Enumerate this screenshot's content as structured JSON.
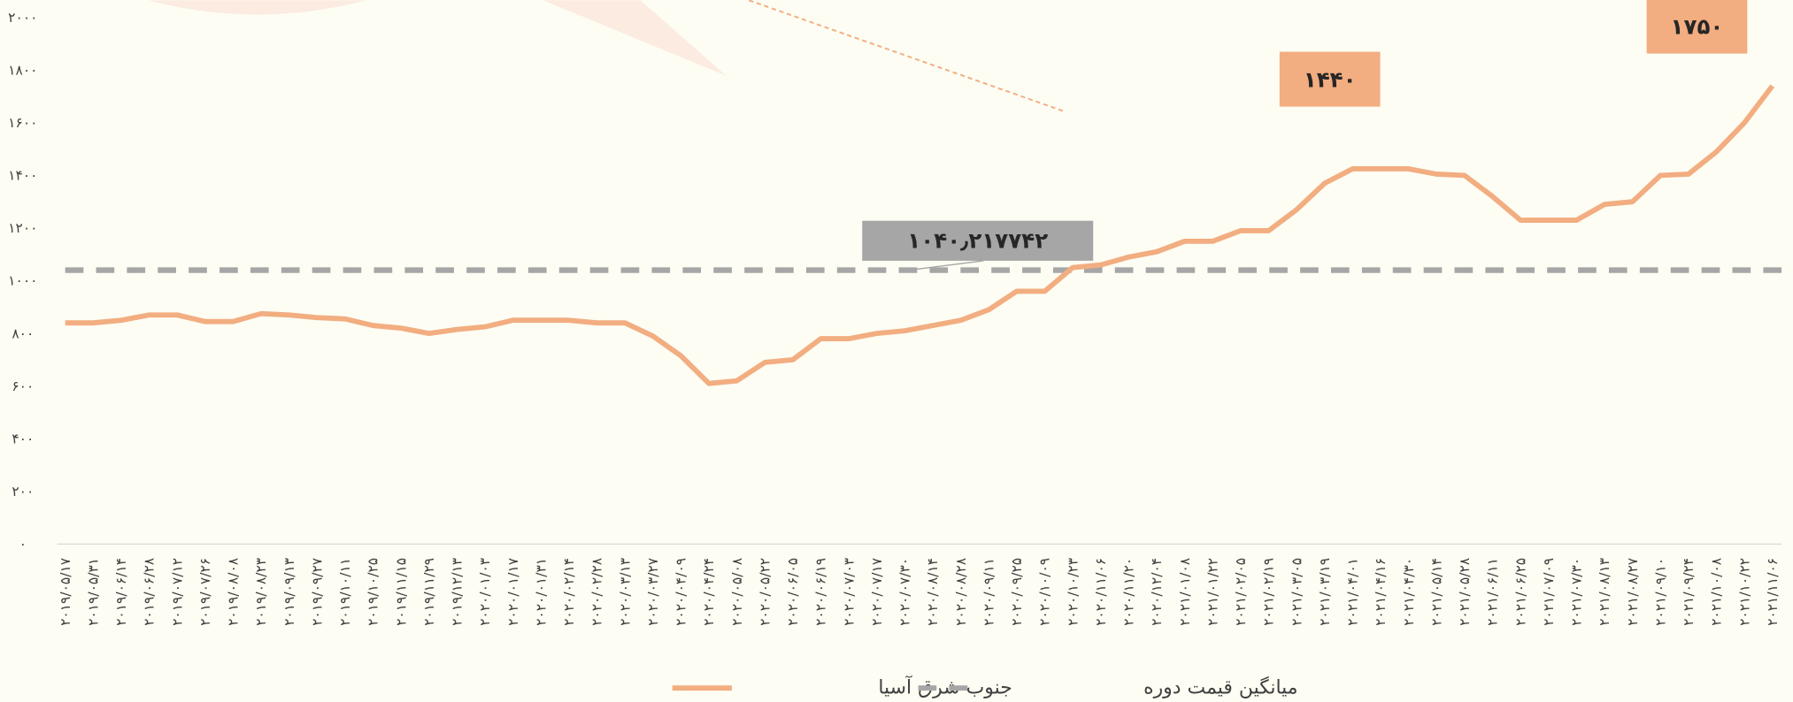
{
  "chart_data": {
    "type": "line",
    "categories": [
      "۲۰۱۹/۰۵/۱۷",
      "۲۰۱۹/۰۵/۳۱",
      "۲۰۱۹/۰۶/۱۴",
      "۲۰۱۹/۰۶/۲۸",
      "۲۰۱۹/۰۷/۱۲",
      "۲۰۱۹/۰۷/۲۶",
      "۲۰۱۹/۰۸/۰۸",
      "۲۰۱۹/۰۸/۲۳",
      "۲۰۱۹/۰۹/۱۳",
      "۲۰۱۹/۰۹/۲۷",
      "۲۰۱۹/۱۰/۱۱",
      "۲۰۱۹/۱۰/۲۵",
      "۲۰۱۹/۱۱/۱۵",
      "۲۰۱۹/۱۱/۲۹",
      "۲۰۱۹/۱۲/۱۳",
      "۲۰۲۰/۰۱/۰۳",
      "۲۰۲۰/۰۱/۱۷",
      "۲۰۲۰/۰۱/۳۱",
      "۲۰۲۰/۰۲/۱۴",
      "۲۰۲۰/۰۲/۲۸",
      "۲۰۲۰/۰۳/۱۳",
      "۲۰۲۰/۰۳/۲۷",
      "۲۰۲۰/۰۴/۰۹",
      "۲۰۲۰/۰۴/۲۴",
      "۲۰۲۰/۰۵/۰۸",
      "۲۰۲۰/۰۵/۲۲",
      "۲۰۲۰/۰۶/۰۵",
      "۲۰۲۰/۰۶/۱۹",
      "۲۰۲۰/۰۷/۰۳",
      "۲۰۲۰/۰۷/۱۷",
      "۲۰۲۰/۰۷/۳۰",
      "۲۰۲۰/۰۸/۱۴",
      "۲۰۲۰/۰۸/۲۸",
      "۲۰۲۰/۰۹/۱۱",
      "۲۰۲۰/۰۹/۲۵",
      "۲۰۲۰/۱۰/۰۹",
      "۲۰۲۰/۱۰/۲۳",
      "۲۰۲۰/۱۱/۰۶",
      "۲۰۲۰/۱۱/۲۰",
      "۲۰۲۰/۱۲/۰۴",
      "۲۰۲۱/۰۱/۰۸",
      "۲۰۲۱/۰۱/۲۲",
      "۲۰۲۱/۰۲/۰۵",
      "۲۰۲۱/۰۲/۱۹",
      "۲۰۲۱/۰۳/۰۵",
      "۲۰۲۱/۰۳/۱۹",
      "۲۰۲۱/۰۴/۰۱",
      "۲۰۲۱/۰۴/۱۶",
      "۲۰۲۱/۰۴/۳۰",
      "۲۰۲۱/۰۵/۱۴",
      "۲۰۲۱/۰۵/۲۸",
      "۲۰۲۱/۰۶/۱۱",
      "۲۰۲۱/۰۶/۲۵",
      "۲۰۲۱/۰۷/۰۹",
      "۲۰۲۱/۰۷/۳۰",
      "۲۰۲۱/۰۸/۱۳",
      "۲۰۲۱/۰۸/۲۷",
      "۲۰۲۱/۰۹/۱۰",
      "۲۰۲۱/۰۹/۲۴",
      "۲۰۲۱/۱۰/۰۸",
      "۲۰۲۱/۱۰/۲۲",
      "۲۰۲۱/۱۱/۰۶"
    ],
    "series": [
      {
        "name": "جنوب شرق آسیا",
        "color": "#f2ad80",
        "values": [
          840,
          840,
          850,
          870,
          870,
          845,
          845,
          875,
          870,
          860,
          855,
          830,
          820,
          800,
          815,
          825,
          850,
          850,
          850,
          840,
          840,
          790,
          715,
          610,
          620,
          690,
          700,
          780,
          780,
          800,
          810,
          830,
          850,
          890,
          960,
          960,
          1050,
          1060,
          1090,
          1110,
          1150,
          1150,
          1190,
          1190,
          1270,
          1370,
          1425,
          1425,
          1425,
          1405,
          1400,
          1320,
          1230,
          1230,
          1230,
          1290,
          1300,
          1400,
          1405,
          1490,
          1600,
          1740
        ]
      }
    ],
    "reference_line": {
      "name": "میانگین قیمت دوره",
      "color": "#a6a6a6",
      "value": 1040.217742,
      "label": "۱۰۴۰٫۲۱۷۷۴۲"
    },
    "annotations": [
      {
        "value": 1440,
        "label": "۱۴۴۰"
      },
      {
        "value": 1750,
        "label": "۱۷۵۰"
      }
    ],
    "ylim": [
      0,
      2000
    ],
    "yticks": [
      {
        "value": 0,
        "label": "۰"
      },
      {
        "value": 200,
        "label": "۲۰۰"
      },
      {
        "value": 400,
        "label": "۴۰۰"
      },
      {
        "value": 600,
        "label": "۶۰۰"
      },
      {
        "value": 800,
        "label": "۸۰۰"
      },
      {
        "value": 1000,
        "label": "۱۰۰۰"
      },
      {
        "value": 1200,
        "label": "۱۲۰۰"
      },
      {
        "value": 1400,
        "label": "۱۴۰۰"
      },
      {
        "value": 1600,
        "label": "۱۶۰۰"
      },
      {
        "value": 1800,
        "label": "۱۸۰۰"
      },
      {
        "value": 2000,
        "label": "۲۰۰۰"
      }
    ],
    "legend": "bottom"
  }
}
